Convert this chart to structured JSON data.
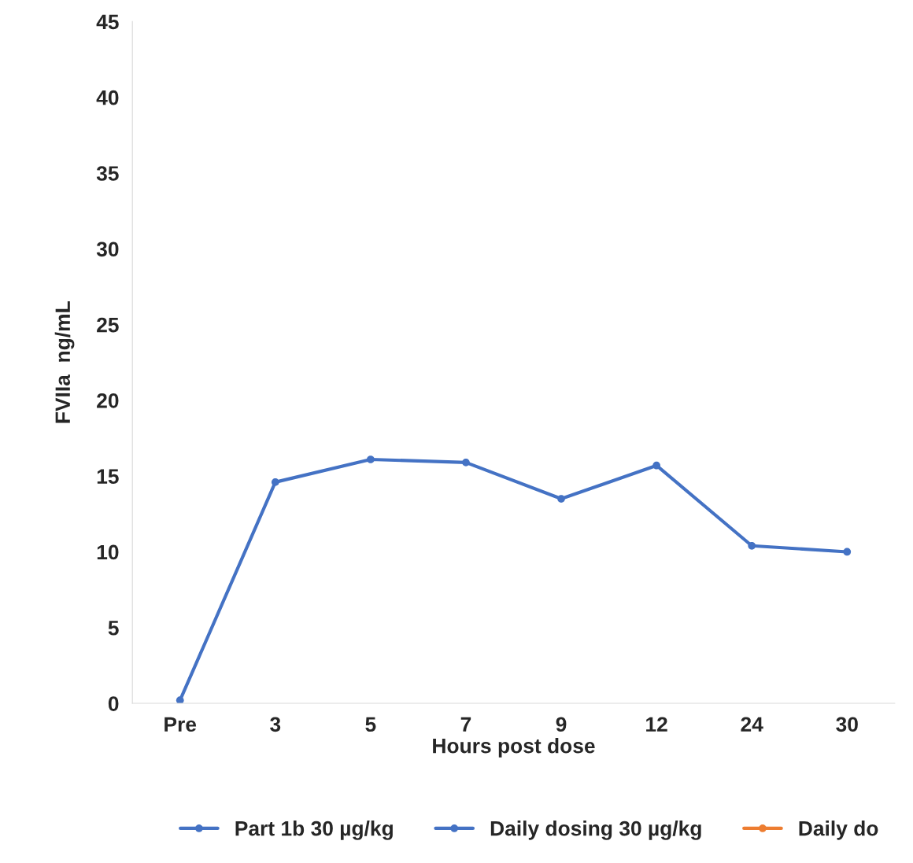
{
  "chart_data": {
    "type": "line",
    "xlabel": "Hours post dose",
    "ylabel": "FVIIa  ng/mL",
    "categories": [
      "Pre",
      "3",
      "5",
      "7",
      "9",
      "12",
      "24",
      "30"
    ],
    "series": [
      {
        "name": "Part 1b 30 µg/kg",
        "color": "#4472c4",
        "values": [
          0.2,
          14.6,
          16.1,
          15.9,
          13.5,
          15.7,
          10.4,
          10.0
        ]
      },
      {
        "name": "Daily dosing 30 µg/kg",
        "color": "#4472c4",
        "values": [
          null,
          null,
          null,
          null,
          null,
          null,
          null,
          null
        ]
      },
      {
        "name": "Daily do",
        "color": "#ed7d31",
        "values": [
          null,
          null,
          null,
          null,
          null,
          null,
          null,
          null
        ]
      }
    ],
    "ylim": [
      0,
      45
    ],
    "yticks": [
      0,
      5,
      10,
      15,
      20,
      25,
      30,
      35,
      40,
      45
    ],
    "grid": false,
    "legend": "bottom",
    "marker": "circle",
    "line_style": "solid"
  }
}
